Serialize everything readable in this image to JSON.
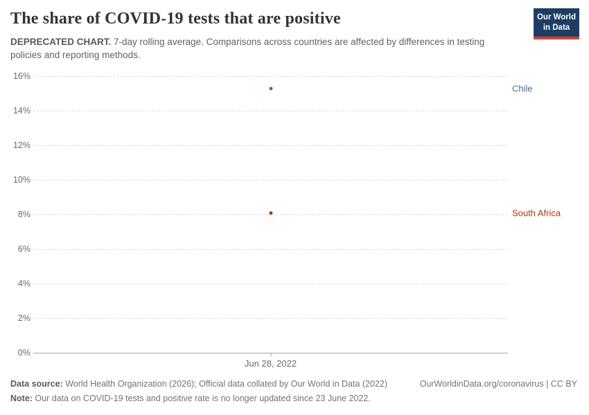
{
  "logo": {
    "line1": "Our World",
    "line2": "in Data",
    "bg_color": "#1d3d63",
    "stripe_color": "#dc3e32"
  },
  "chart_data": {
    "type": "scatter",
    "title": "The share of COVID-19 tests that are positive",
    "subtitle_bold": "DEPRECATED CHART.",
    "subtitle_rest": " 7-day rolling average. Comparisons across countries are affected by differences in testing policies and reporting methods.",
    "x": [
      "Jun 28, 2022"
    ],
    "x_tick_label": "Jun 28, 2022",
    "x_tick_frac": 0.5,
    "xlabel": "",
    "ylabel": "",
    "ylim": [
      0,
      16
    ],
    "y_ticks": [
      0,
      2,
      4,
      6,
      8,
      10,
      12,
      14,
      16
    ],
    "y_tick_suffix": "%",
    "grid": true,
    "legend_position": "right-edge-entity-labels",
    "series": [
      {
        "name": "Chile",
        "values": [
          15.3
        ],
        "color": "#4c6a9c"
      },
      {
        "name": "South Africa",
        "values": [
          8.1
        ],
        "color": "#b13507"
      }
    ]
  },
  "footer": {
    "source_label": "Data source:",
    "source_text": " World Health Organization (2026); Official data collated by Our World in Data (2022)",
    "link": "OurWorldinData.org/coronavirus | CC BY",
    "note_label": "Note:",
    "note_text": " Our data on COVID-19 tests and positive rate is no longer updated since 23 June 2022."
  }
}
